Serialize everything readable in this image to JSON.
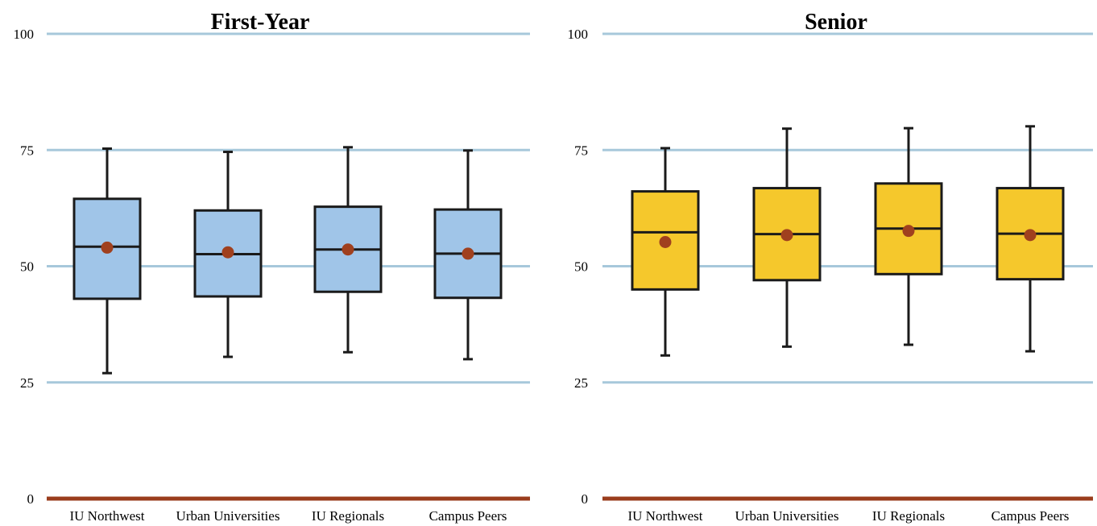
{
  "chart_data": [
    {
      "type": "box",
      "title": "First-Year",
      "categories": [
        "IU Northwest",
        "Urban Universities",
        "IU Regionals",
        "Campus Peers"
      ],
      "ylim": [
        0,
        100
      ],
      "yticks": [
        0,
        25,
        50,
        75,
        100
      ],
      "grid": true,
      "series": [
        {
          "boxes": [
            {
              "min": 27,
              "q1": 43,
              "median": 54.2,
              "q3": 64.5,
              "max": 75.3,
              "mean": 54
            },
            {
              "min": 30.5,
              "q1": 43.5,
              "median": 52.6,
              "q3": 62,
              "max": 74.6,
              "mean": 53
            },
            {
              "min": 31.5,
              "q1": 44.5,
              "median": 53.6,
              "q3": 62.8,
              "max": 75.6,
              "mean": 53.6
            },
            {
              "min": 30,
              "q1": 43.2,
              "median": 52.7,
              "q3": 62.2,
              "max": 74.9,
              "mean": 52.7
            }
          ],
          "box_color": "#a0c5e8",
          "mean_color": "#a0401e"
        }
      ]
    },
    {
      "type": "box",
      "title": "Senior",
      "categories": [
        "IU Northwest",
        "Urban Universities",
        "IU Regionals",
        "Campus Peers"
      ],
      "ylim": [
        0,
        100
      ],
      "yticks": [
        0,
        25,
        50,
        75,
        100
      ],
      "grid": true,
      "series": [
        {
          "boxes": [
            {
              "min": 30.8,
              "q1": 45,
              "median": 57.3,
              "q3": 66.1,
              "max": 75.4,
              "mean": 55.2
            },
            {
              "min": 32.7,
              "q1": 47,
              "median": 56.9,
              "q3": 66.8,
              "max": 79.6,
              "mean": 56.7
            },
            {
              "min": 33.1,
              "q1": 48.3,
              "median": 58.1,
              "q3": 67.8,
              "max": 79.7,
              "mean": 57.6
            },
            {
              "min": 31.7,
              "q1": 47.2,
              "median": 57,
              "q3": 66.8,
              "max": 80.1,
              "mean": 56.7
            }
          ],
          "box_color": "#f5c82c",
          "mean_color": "#a0401e"
        }
      ]
    }
  ],
  "colors": {
    "gridline": "#a7c8db",
    "baseline": "#9a3c1c",
    "outline": "#1a1a1a"
  }
}
